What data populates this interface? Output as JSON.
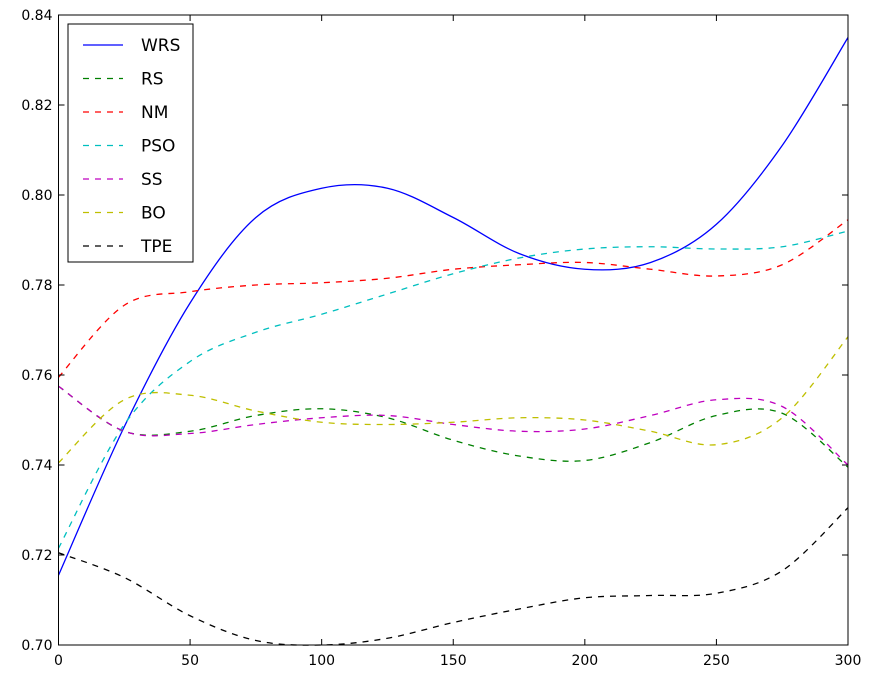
{
  "chart_data": {
    "type": "line",
    "title": "",
    "xlabel": "",
    "ylabel": "",
    "xlim": [
      0,
      300
    ],
    "ylim": [
      0.7,
      0.84
    ],
    "x_ticks": [
      0,
      50,
      100,
      150,
      200,
      250,
      300
    ],
    "y_ticks": [
      0.7,
      0.72,
      0.74,
      0.76,
      0.78,
      0.8,
      0.82,
      0.84
    ],
    "x_tick_labels": [
      "0",
      "50",
      "100",
      "150",
      "200",
      "250",
      "300"
    ],
    "y_tick_labels": [
      "0.70",
      "0.72",
      "0.74",
      "0.76",
      "0.78",
      "0.80",
      "0.82",
      "0.84"
    ],
    "grid": false,
    "legend_position": "top-left",
    "x": [
      0,
      25,
      50,
      75,
      100,
      125,
      150,
      175,
      200,
      225,
      250,
      275,
      300
    ],
    "series": [
      {
        "name": "WRS",
        "color": "#0000ff",
        "style": "solid",
        "values": [
          0.7155,
          0.7485,
          0.776,
          0.795,
          0.8015,
          0.8015,
          0.795,
          0.787,
          0.7835,
          0.785,
          0.7935,
          0.811,
          0.835
        ]
      },
      {
        "name": "RS",
        "color": "#008000",
        "style": "dashed",
        "values": [
          0.7575,
          0.7475,
          0.7475,
          0.751,
          0.7525,
          0.7505,
          0.7455,
          0.742,
          0.741,
          0.745,
          0.751,
          0.7515,
          0.7395
        ]
      },
      {
        "name": "NM",
        "color": "#ff0000",
        "style": "dashed",
        "values": [
          0.7595,
          0.7755,
          0.7785,
          0.78,
          0.7805,
          0.7815,
          0.7835,
          0.7845,
          0.785,
          0.7835,
          0.782,
          0.7845,
          0.7945
        ]
      },
      {
        "name": "PSO",
        "color": "#00bfbf",
        "style": "dashed",
        "values": [
          0.7215,
          0.749,
          0.763,
          0.7695,
          0.7735,
          0.778,
          0.7825,
          0.786,
          0.788,
          0.7885,
          0.788,
          0.7885,
          0.792
        ]
      },
      {
        "name": "SS",
        "color": "#bf00bf",
        "style": "dashed",
        "values": [
          0.7575,
          0.7475,
          0.747,
          0.749,
          0.7505,
          0.751,
          0.749,
          0.7475,
          0.748,
          0.751,
          0.7545,
          0.753,
          0.74
        ]
      },
      {
        "name": "BO",
        "color": "#bfbf00",
        "style": "dashed",
        "values": [
          0.7405,
          0.7545,
          0.7555,
          0.752,
          0.7495,
          0.749,
          0.7495,
          0.7505,
          0.75,
          0.7475,
          0.7445,
          0.7505,
          0.7685
        ]
      },
      {
        "name": "TPE",
        "color": "#000000",
        "style": "dashed",
        "values": [
          0.7205,
          0.715,
          0.7065,
          0.701,
          0.7,
          0.7015,
          0.705,
          0.708,
          0.7105,
          0.711,
          0.7115,
          0.7165,
          0.7305
        ]
      }
    ]
  }
}
